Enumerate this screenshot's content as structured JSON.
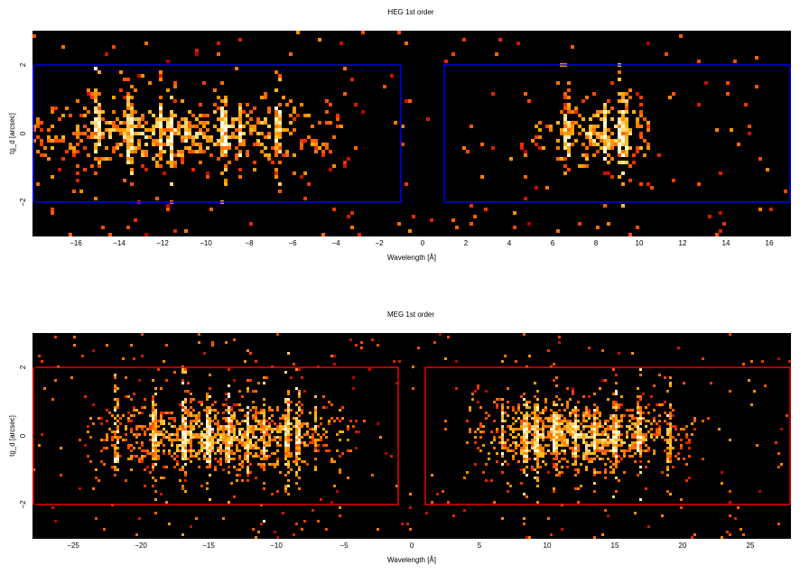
{
  "chart_data": [
    {
      "type": "heatmap",
      "title": "HEG 1st order",
      "xlabel": "Wavelength [Å]",
      "ylabel": "tg_d [arcsec]",
      "xlim": [
        -18,
        17
      ],
      "ylim": [
        -3,
        3
      ],
      "xticks": [
        -16,
        -14,
        -12,
        -10,
        -8,
        -6,
        -4,
        -2,
        0,
        2,
        4,
        6,
        8,
        10,
        12,
        14,
        16
      ],
      "yticks": [
        -2,
        0,
        2
      ],
      "colormap": "heat (black-red-orange-yellow-white)",
      "extraction_boxes": {
        "color": "#0000ff",
        "regions": [
          {
            "x": [
              -18,
              -1
            ],
            "y": [
              -2,
              2
            ]
          },
          {
            "x": [
              1,
              17
            ],
            "y": [
              -2,
              2
            ]
          }
        ]
      },
      "emission_lines": [
        -15.0,
        -13.5,
        -12.1,
        -11.6,
        -9.2,
        -8.4,
        -6.7,
        6.7,
        8.4,
        9.2,
        9.4
      ],
      "counts_profile": {
        "negative_center": -11,
        "negative_width": 4.5,
        "negative_range": [
          -18,
          -3
        ],
        "positive_center": 8.2,
        "positive_width": 1.6,
        "positive_range": [
          3,
          10.5
        ]
      }
    },
    {
      "type": "heatmap",
      "title": "MEG 1st order",
      "xlabel": "Wavelength [Å]",
      "ylabel": "tg_d [arcsec]",
      "xlim": [
        -28,
        28
      ],
      "ylim": [
        -3,
        3
      ],
      "xticks": [
        -25,
        -20,
        -15,
        -10,
        -5,
        0,
        5,
        10,
        15,
        20,
        25
      ],
      "yticks": [
        -2,
        0,
        2
      ],
      "colormap": "heat (black-red-orange-yellow-white)",
      "extraction_boxes": {
        "color": "#ff0000",
        "regions": [
          {
            "x": [
              -28,
              -1
            ],
            "y": [
              -2,
              2
            ]
          },
          {
            "x": [
              1,
              28
            ],
            "y": [
              -2,
              2
            ]
          }
        ]
      },
      "emission_lines": [
        -21.8,
        -19.0,
        -16.8,
        -15.0,
        -13.5,
        -12.1,
        -10.9,
        -9.2,
        -8.4,
        -7.1,
        6.7,
        8.4,
        9.2,
        10.6,
        12.1,
        13.5,
        15.0,
        16.8,
        19.0
      ],
      "counts_profile": {
        "negative_center": -14,
        "negative_width": 5,
        "negative_range": [
          -24,
          -4
        ],
        "positive_center": 12,
        "positive_width": 4.5,
        "positive_range": [
          4,
          21
        ]
      }
    }
  ]
}
